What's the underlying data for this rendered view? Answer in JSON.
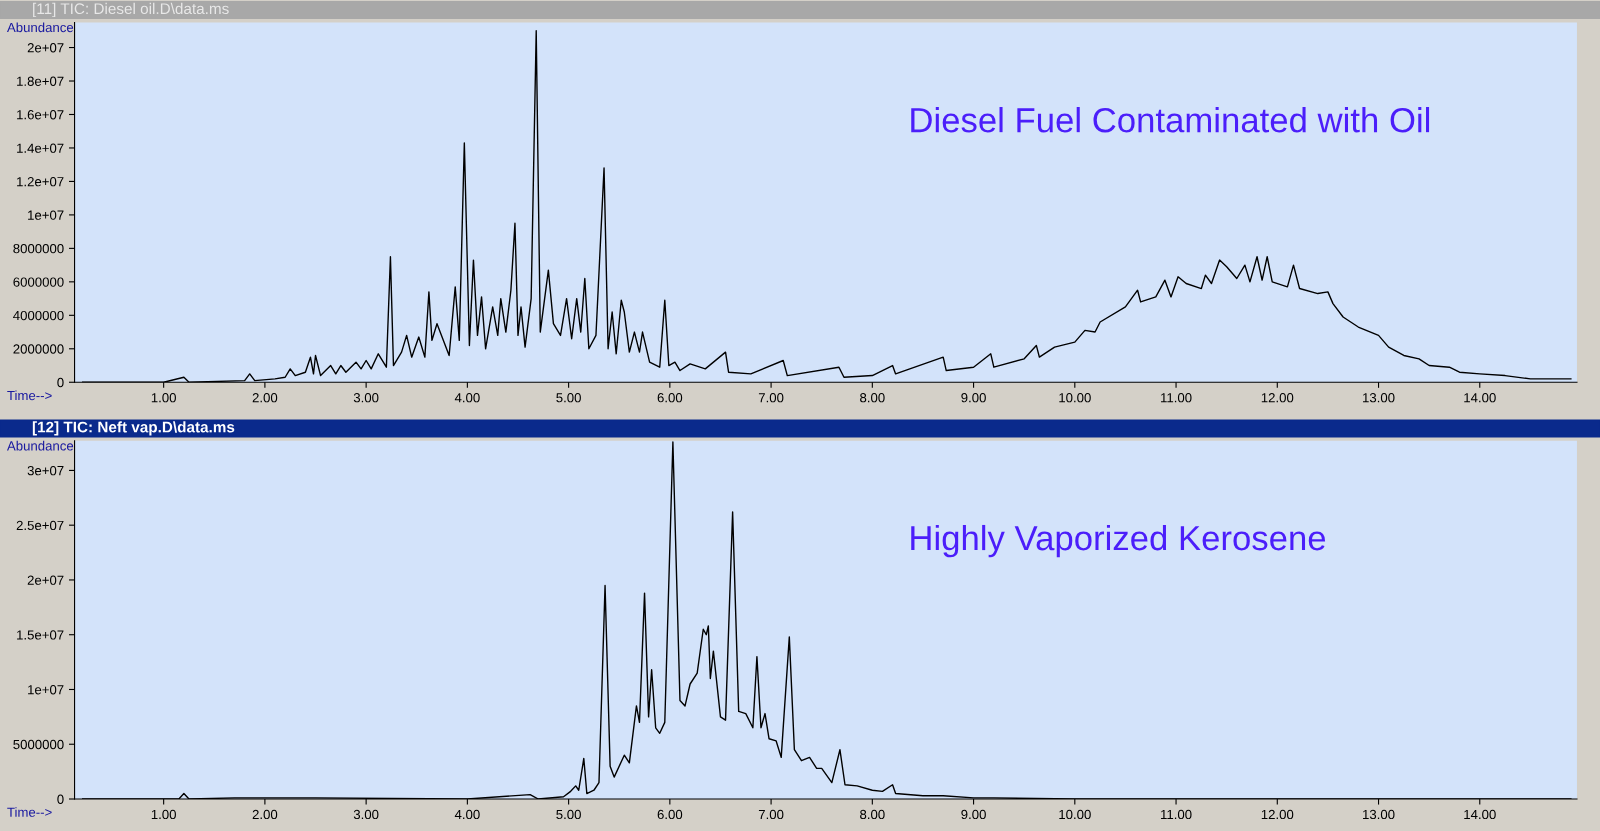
{
  "chart_data": [
    {
      "type": "line",
      "title": "[11] TIC: Diesel oil.D\\data.ms",
      "xlabel": "Time-->",
      "ylabel": "Abundance",
      "annotations": [
        "Diesel Fuel Contaminated with Oil"
      ],
      "xlim": [
        0.12,
        14.96
      ],
      "xticks": [
        {
          "value": 1,
          "label": "1.00"
        },
        {
          "value": 2,
          "label": "2.00"
        },
        {
          "value": 3,
          "label": "3.00"
        },
        {
          "value": 4,
          "label": "4.00"
        },
        {
          "value": 5,
          "label": "5.00"
        },
        {
          "value": 6,
          "label": "6.00"
        },
        {
          "value": 7,
          "label": "7.00"
        },
        {
          "value": 8,
          "label": "8.00"
        },
        {
          "value": 9,
          "label": "9.00"
        },
        {
          "value": 10,
          "label": "10.00"
        },
        {
          "value": 11,
          "label": "11.00"
        },
        {
          "value": 12,
          "label": "12.00"
        },
        {
          "value": 13,
          "label": "13.00"
        },
        {
          "value": 14,
          "label": "14.00"
        }
      ],
      "ylim": [
        0,
        21500000
      ],
      "yticks": [
        0,
        2000000,
        4000000,
        6000000,
        8000000,
        {
          "value": 10000000,
          "label": "1e+07"
        },
        {
          "value": 12000000,
          "label": "1.2e+07"
        },
        {
          "value": 14000000,
          "label": "1.4e+07"
        },
        {
          "value": 16000000,
          "label": "1.6e+07"
        },
        {
          "value": 18000000,
          "label": "1.8e+07"
        },
        {
          "value": 20000000,
          "label": "2e+07"
        }
      ],
      "grid": false,
      "legend": false,
      "marker": "none",
      "line_style": "solid",
      "series": [
        {
          "color": "#000000",
          "x": [
            0.2,
            1.0,
            1.2,
            1.25,
            1.8,
            1.85,
            1.9,
            2.1,
            2.2,
            2.25,
            2.3,
            2.4,
            2.45,
            2.48,
            2.5,
            2.55,
            2.65,
            2.7,
            2.75,
            2.8,
            2.9,
            2.95,
            3.0,
            3.05,
            3.12,
            3.2,
            3.24,
            3.27,
            3.35,
            3.4,
            3.45,
            3.52,
            3.58,
            3.62,
            3.65,
            3.7,
            3.75,
            3.82,
            3.88,
            3.92,
            3.97,
            4.02,
            4.06,
            4.1,
            4.14,
            4.18,
            4.25,
            4.3,
            4.33,
            4.38,
            4.43,
            4.47,
            4.5,
            4.53,
            4.57,
            4.63,
            4.68,
            4.72,
            4.8,
            4.85,
            4.92,
            4.98,
            5.03,
            5.08,
            5.12,
            5.16,
            5.2,
            5.27,
            5.35,
            5.39,
            5.43,
            5.47,
            5.52,
            5.55,
            5.6,
            5.65,
            5.7,
            5.73,
            5.8,
            5.9,
            5.95,
            5.99,
            6.05,
            6.1,
            6.2,
            6.35,
            6.55,
            6.58,
            6.8,
            7.12,
            7.16,
            7.67,
            7.72,
            8.0,
            8.2,
            8.23,
            8.7,
            8.73,
            9.0,
            9.17,
            9.2,
            9.5,
            9.62,
            9.65,
            9.8,
            10.0,
            10.1,
            10.2,
            10.25,
            10.5,
            10.62,
            10.65,
            10.8,
            10.89,
            10.95,
            11.02,
            11.1,
            11.25,
            11.29,
            11.35,
            11.43,
            11.5,
            11.6,
            11.68,
            11.73,
            11.8,
            11.85,
            11.9,
            11.95,
            12.1,
            12.16,
            12.22,
            12.4,
            12.5,
            12.55,
            12.65,
            12.8,
            13.0,
            13.1,
            13.25,
            13.4,
            13.5,
            13.7,
            13.8,
            14.0,
            14.25,
            14.5,
            14.9
          ],
          "values": [
            0,
            0,
            300000,
            0,
            100000,
            500000,
            100000,
            200000,
            300000,
            800000,
            400000,
            600000,
            1500000,
            500000,
            1600000,
            400000,
            1000000,
            500000,
            1000000,
            600000,
            1200000,
            800000,
            1300000,
            800000,
            1700000,
            900000,
            7500000,
            1000000,
            1800000,
            2800000,
            1500000,
            2700000,
            1500000,
            5400000,
            2500000,
            3500000,
            2700000,
            1600000,
            5700000,
            2500000,
            14300000,
            2200000,
            7300000,
            2800000,
            5100000,
            2000000,
            4500000,
            2800000,
            5000000,
            3000000,
            5500000,
            9500000,
            2800000,
            4500000,
            2100000,
            5000000,
            21000000,
            3000000,
            6700000,
            3500000,
            2800000,
            5000000,
            2600000,
            5000000,
            3000000,
            6200000,
            2000000,
            2800000,
            12800000,
            2000000,
            4200000,
            1700000,
            4900000,
            4200000,
            1800000,
            3000000,
            1800000,
            3000000,
            1200000,
            900000,
            4900000,
            1000000,
            1200000,
            700000,
            1100000,
            800000,
            1800000,
            600000,
            500000,
            1300000,
            400000,
            900000,
            300000,
            400000,
            1000000,
            500000,
            1500000,
            700000,
            900000,
            1700000,
            900000,
            1400000,
            2200000,
            1500000,
            2100000,
            2400000,
            3100000,
            3000000,
            3600000,
            4500000,
            5500000,
            4800000,
            5100000,
            6100000,
            5100000,
            6300000,
            5900000,
            5600000,
            6400000,
            5900000,
            7300000,
            6900000,
            6200000,
            7000000,
            6000000,
            7500000,
            6100000,
            7500000,
            6000000,
            5700000,
            7000000,
            5600000,
            5300000,
            5400000,
            4700000,
            3900000,
            3300000,
            2800000,
            2100000,
            1600000,
            1400000,
            1000000,
            900000,
            600000,
            500000,
            400000,
            200000,
            200000
          ]
        }
      ]
    },
    {
      "type": "line",
      "title": "[12] TIC: Neft vap.D\\data.ms",
      "xlabel": "Time-->",
      "ylabel": "Abundance",
      "annotations": [
        "Highly Vaporized Kerosene"
      ],
      "xlim": [
        0.12,
        14.96
      ],
      "xticks": [
        {
          "value": 1,
          "label": "1.00"
        },
        {
          "value": 2,
          "label": "2.00"
        },
        {
          "value": 3,
          "label": "3.00"
        },
        {
          "value": 4,
          "label": "4.00"
        },
        {
          "value": 5,
          "label": "5.00"
        },
        {
          "value": 6,
          "label": "6.00"
        },
        {
          "value": 7,
          "label": "7.00"
        },
        {
          "value": 8,
          "label": "8.00"
        },
        {
          "value": 9,
          "label": "9.00"
        },
        {
          "value": 10,
          "label": "10.00"
        },
        {
          "value": 11,
          "label": "11.00"
        },
        {
          "value": 12,
          "label": "12.00"
        },
        {
          "value": 13,
          "label": "13.00"
        },
        {
          "value": 14,
          "label": "14.00"
        }
      ],
      "ylim": [
        0,
        32700000
      ],
      "yticks": [
        0,
        5000000,
        {
          "value": 10000000,
          "label": "1e+07"
        },
        {
          "value": 15000000,
          "label": "1.5e+07"
        },
        {
          "value": 20000000,
          "label": "2e+07"
        },
        {
          "value": 25000000,
          "label": "2.5e+07"
        },
        {
          "value": 30000000,
          "label": "3e+07"
        }
      ],
      "grid": false,
      "legend": false,
      "marker": "none",
      "line_style": "solid",
      "series": [
        {
          "color": "#000000",
          "x": [
            0.2,
            1.15,
            1.2,
            1.25,
            1.7,
            2.25,
            2.5,
            4.0,
            4.62,
            4.7,
            4.95,
            5.02,
            5.07,
            5.1,
            5.15,
            5.18,
            5.25,
            5.3,
            5.36,
            5.41,
            5.45,
            5.55,
            5.6,
            5.67,
            5.7,
            5.75,
            5.79,
            5.82,
            5.86,
            5.9,
            5.95,
            6.03,
            6.1,
            6.15,
            6.2,
            6.27,
            6.33,
            6.36,
            6.38,
            6.4,
            6.43,
            6.5,
            6.55,
            6.62,
            6.68,
            6.75,
            6.82,
            6.86,
            6.9,
            6.94,
            6.98,
            7.05,
            7.1,
            7.18,
            7.23,
            7.3,
            7.38,
            7.45,
            7.5,
            7.6,
            7.68,
            7.73,
            7.85,
            8.0,
            8.1,
            8.2,
            8.23,
            8.5,
            8.7,
            9.0,
            9.2,
            10.0,
            14.9
          ],
          "values": [
            0,
            0,
            500000,
            0,
            100000,
            100000,
            100000,
            0,
            400000,
            0,
            200000,
            700000,
            1200000,
            800000,
            3700000,
            500000,
            800000,
            1500000,
            19500000,
            3000000,
            2000000,
            4000000,
            3300000,
            8500000,
            7000000,
            18800000,
            7500000,
            11800000,
            6500000,
            6000000,
            7000000,
            32600000,
            9000000,
            8500000,
            10500000,
            11500000,
            15500000,
            15000000,
            15800000,
            11000000,
            13500000,
            7500000,
            7200000,
            26200000,
            8000000,
            7800000,
            6500000,
            13000000,
            6500000,
            7800000,
            5500000,
            5300000,
            3800000,
            14800000,
            4500000,
            3500000,
            3800000,
            2800000,
            2800000,
            1500000,
            4500000,
            1300000,
            1200000,
            800000,
            700000,
            1300000,
            500000,
            300000,
            300000,
            100000,
            100000,
            0,
            0
          ]
        }
      ]
    }
  ]
}
